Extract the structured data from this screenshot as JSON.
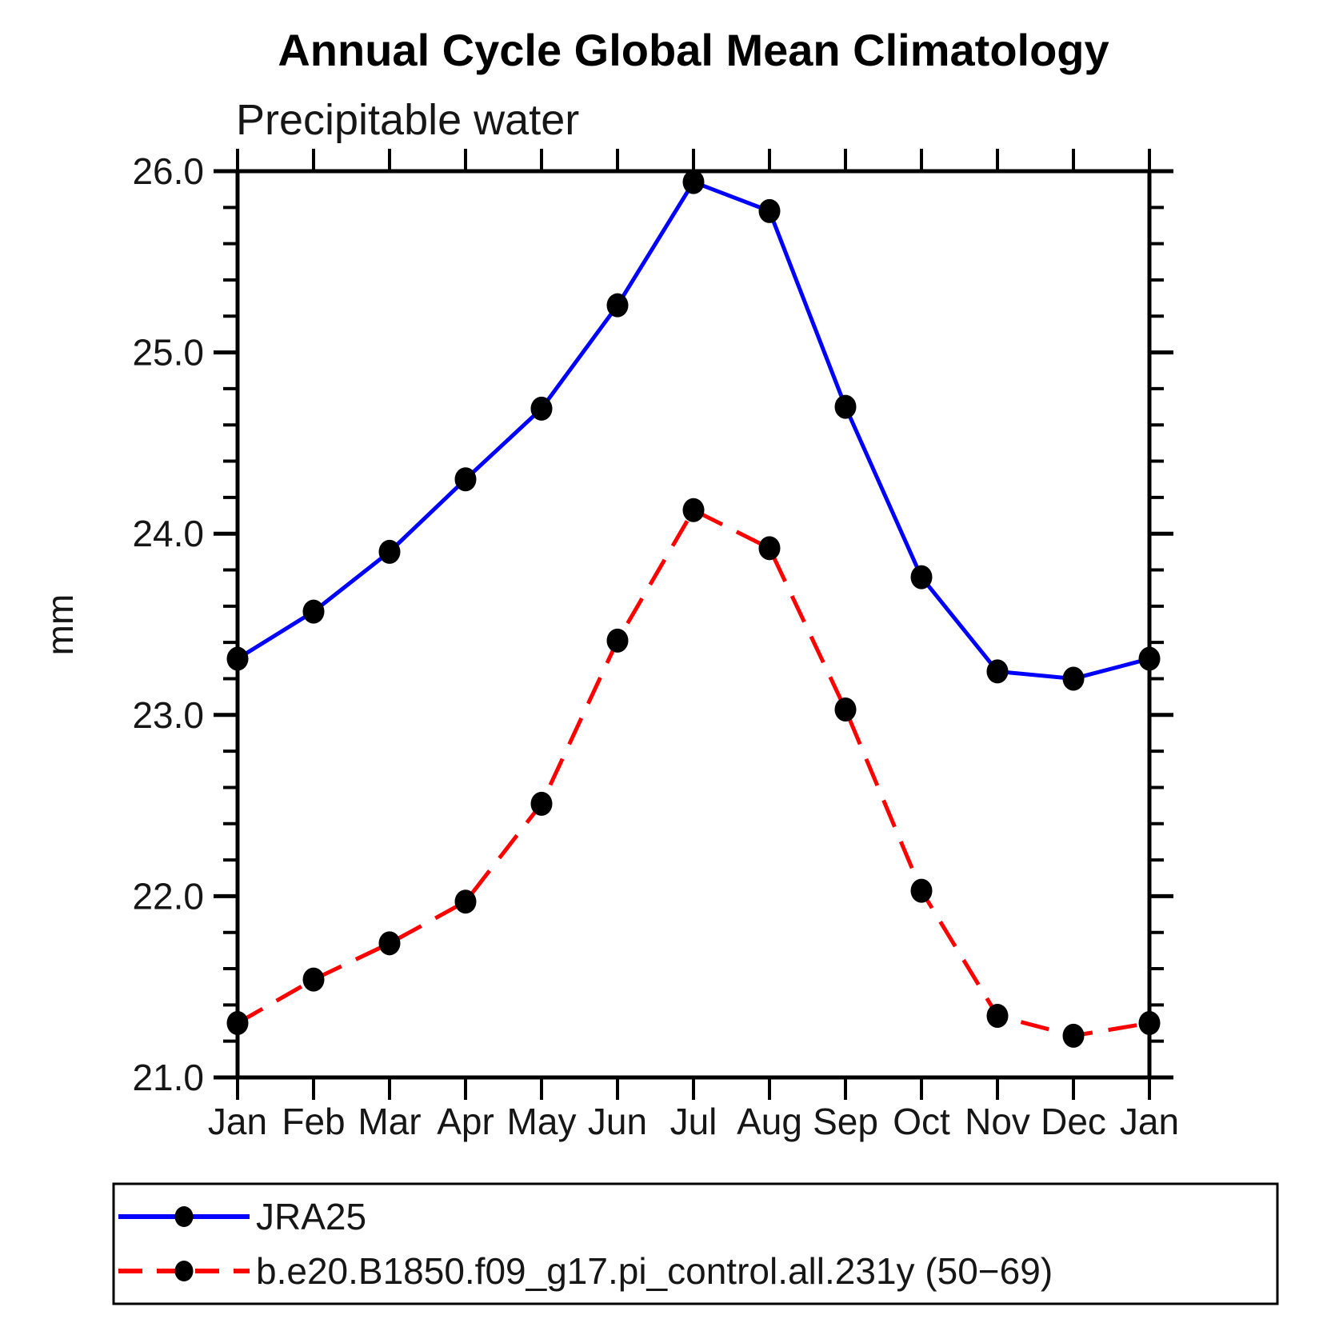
{
  "chart_data": {
    "type": "line",
    "title": "Annual Cycle Global Mean Climatology",
    "subtitle": "Precipitable water",
    "ylabel": "mm",
    "xlabel": "",
    "categories": [
      "Jan",
      "Feb",
      "Mar",
      "Apr",
      "May",
      "Jun",
      "Jul",
      "Aug",
      "Sep",
      "Oct",
      "Nov",
      "Dec",
      "Jan"
    ],
    "ylim": [
      21.0,
      26.0
    ],
    "ytick_major_interval": 1.0,
    "ytick_minor_interval": 0.2,
    "ytick_labels": [
      "21.0",
      "22.0",
      "23.0",
      "24.0",
      "25.0",
      "26.0"
    ],
    "grid": false,
    "legend_position": "bottom-left-box",
    "series": [
      {
        "name": "JRA25",
        "color": "#0000ff",
        "line_style": "solid",
        "marker": "filled-circle",
        "marker_color": "#000000",
        "values": [
          23.31,
          23.57,
          23.9,
          24.3,
          24.69,
          25.26,
          25.94,
          25.78,
          24.7,
          23.76,
          23.24,
          23.2,
          23.31
        ]
      },
      {
        "name": "b.e20.B1850.f09_g17.pi_control.all.231y (50−69)",
        "color": "#ff0000",
        "line_style": "dashed",
        "marker": "filled-circle",
        "marker_color": "#000000",
        "values": [
          21.3,
          21.54,
          21.74,
          21.97,
          22.51,
          23.41,
          24.13,
          23.92,
          23.03,
          22.03,
          21.34,
          21.23,
          21.3
        ]
      }
    ],
    "axis_color": "#000000"
  }
}
